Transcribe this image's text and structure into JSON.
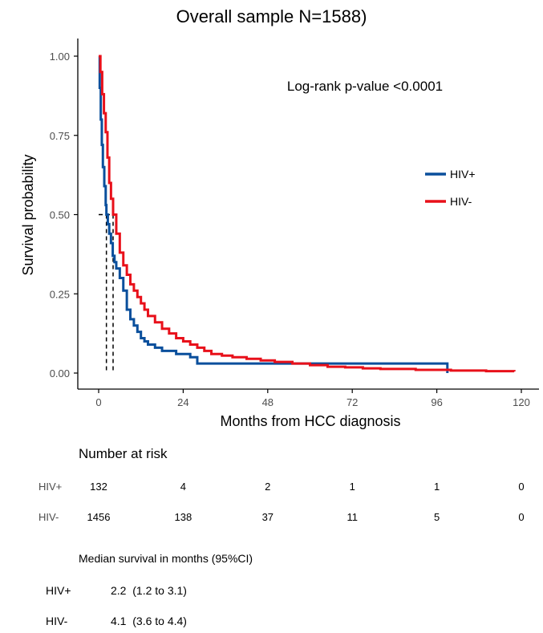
{
  "title": "Overall sample N=1588)",
  "chart_data": {
    "type": "line",
    "subtype": "kaplan-meier",
    "title": "Overall sample N=1588)",
    "xlabel": "Months from HCC diagnosis",
    "ylabel": "Survival probability",
    "xlim": [
      0,
      120
    ],
    "ylim": [
      0,
      1
    ],
    "xticks": [
      0,
      24,
      48,
      72,
      96,
      120
    ],
    "yticks": [
      0,
      0.25,
      0.5,
      0.75,
      1.0
    ],
    "ytick_labels": [
      "0.00",
      "0.25",
      "0.50",
      "0.75",
      "1.00"
    ],
    "grid": false,
    "legend_position": "right",
    "annotation": "Log-rank p-value <0.0001",
    "median_reference": {
      "level": 0.5,
      "x": [
        2.2,
        4.1
      ]
    },
    "series": [
      {
        "name": "HIV+",
        "color": "#0a4f9c",
        "x": [
          0,
          0.3,
          0.6,
          0.9,
          1.2,
          1.6,
          2.0,
          2.2,
          2.6,
          3.0,
          3.5,
          4.0,
          4.5,
          5.0,
          6.0,
          7.0,
          8.0,
          9.0,
          10.0,
          11.0,
          12.0,
          13.0,
          14.0,
          16.0,
          18.0,
          22.0,
          26.0,
          28.0,
          98.0,
          99.0
        ],
        "y": [
          1.0,
          0.9,
          0.8,
          0.72,
          0.65,
          0.59,
          0.53,
          0.5,
          0.47,
          0.44,
          0.41,
          0.37,
          0.35,
          0.33,
          0.3,
          0.26,
          0.2,
          0.17,
          0.15,
          0.13,
          0.11,
          0.1,
          0.09,
          0.08,
          0.07,
          0.06,
          0.05,
          0.03,
          0.03,
          0.0
        ]
      },
      {
        "name": "HIV-",
        "color": "#e8101a",
        "x": [
          0,
          0.5,
          1.0,
          1.5,
          2.0,
          2.5,
          3.0,
          3.5,
          4.1,
          5.0,
          6.0,
          7.0,
          8.0,
          9.0,
          10.0,
          11.0,
          12.0,
          13.0,
          14.0,
          16.0,
          18.0,
          20.0,
          22.0,
          24.0,
          26.0,
          28.0,
          30.0,
          32.0,
          35.0,
          38.0,
          42.0,
          46.0,
          50.0,
          55.0,
          60.0,
          65.0,
          70.0,
          75.0,
          80.0,
          90.0,
          100.0,
          110.0,
          118.0
        ],
        "y": [
          1.0,
          0.95,
          0.88,
          0.82,
          0.76,
          0.68,
          0.6,
          0.55,
          0.5,
          0.44,
          0.38,
          0.34,
          0.31,
          0.28,
          0.26,
          0.24,
          0.22,
          0.2,
          0.18,
          0.16,
          0.14,
          0.125,
          0.11,
          0.1,
          0.09,
          0.08,
          0.07,
          0.06,
          0.055,
          0.05,
          0.045,
          0.04,
          0.035,
          0.03,
          0.025,
          0.02,
          0.018,
          0.015,
          0.013,
          0.01,
          0.008,
          0.006,
          0.005
        ]
      }
    ]
  },
  "risk_table": {
    "title": "Number at risk",
    "times": [
      0,
      24,
      48,
      72,
      96,
      120
    ],
    "rows": [
      {
        "label": "HIV+",
        "values": [
          "132",
          "4",
          "2",
          "1",
          "1",
          "0"
        ]
      },
      {
        "label": "HIV-",
        "values": [
          "1456",
          "138",
          "37",
          "11",
          "5",
          "0"
        ]
      }
    ]
  },
  "median_table": {
    "title": "Median survival in months (95%CI)",
    "rows": [
      {
        "label": "HIV+",
        "value": "2.2  (1.2 to 3.1)"
      },
      {
        "label": "HIV-",
        "value": "4.1  (3.6 to 4.4)"
      }
    ]
  }
}
